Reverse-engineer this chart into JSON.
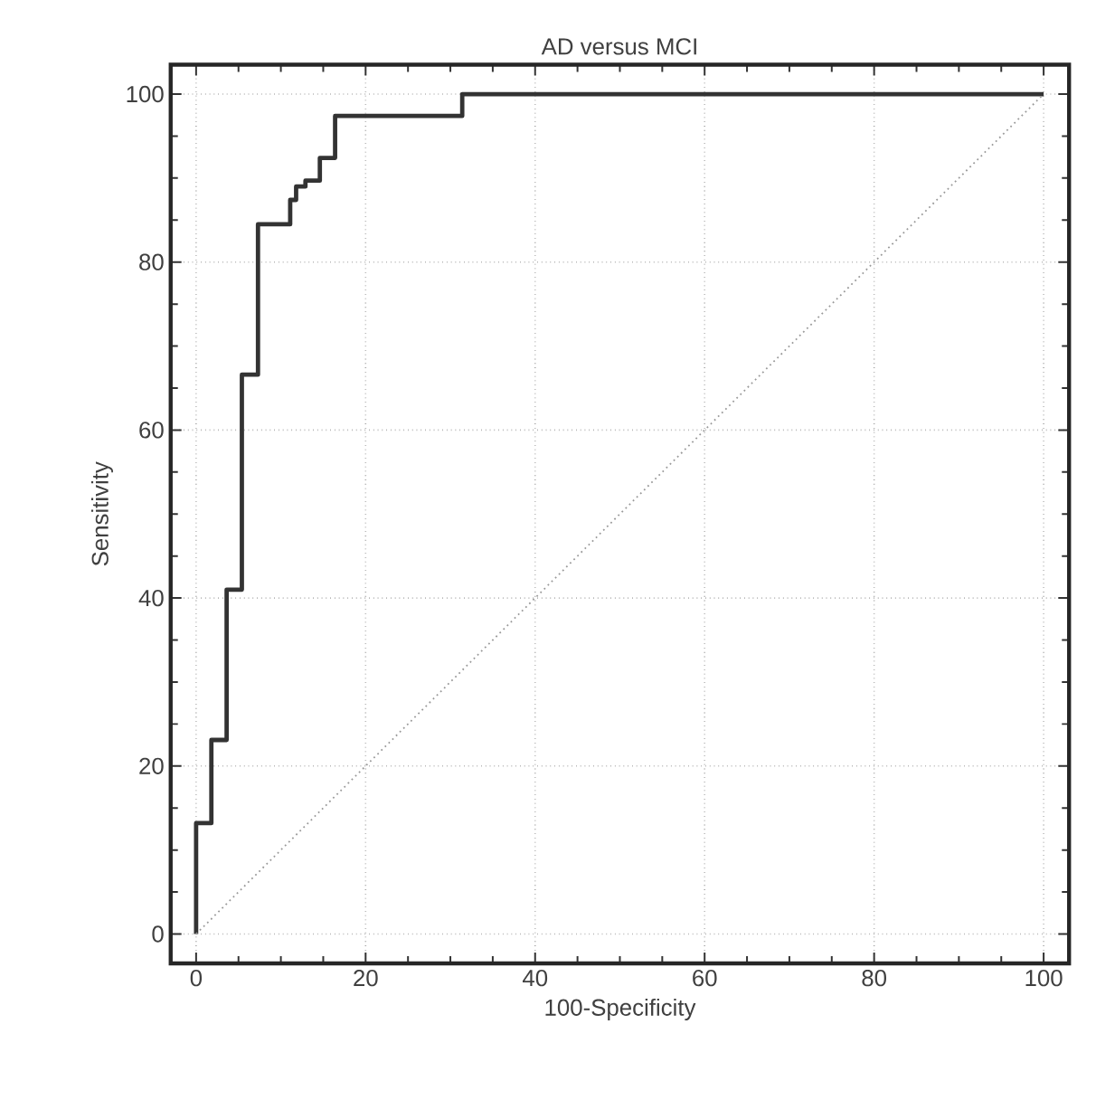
{
  "chart_data": {
    "type": "step",
    "title": "AD versus MCI",
    "xlabel": "100-Specificity",
    "ylabel": "Sensitivity",
    "xlim": [
      -3,
      103
    ],
    "ylim": [
      -3.5,
      103.5
    ],
    "xticks": [
      0,
      20,
      40,
      60,
      80,
      100
    ],
    "yticks": [
      0,
      20,
      40,
      60,
      80,
      100
    ],
    "grid": true,
    "series": [
      {
        "color": "#333333",
        "x": [
          0,
          0,
          1.8,
          3.6,
          5.4,
          7.3,
          11.1,
          11.8,
          12.9,
          14.6,
          16.4,
          31.4,
          100
        ],
        "values": [
          0,
          13.2,
          23.1,
          41,
          66.6,
          84.5,
          87.4,
          89,
          89.7,
          92.4,
          97.4,
          100,
          100
        ]
      },
      {
        "type": "line",
        "color": "#999999",
        "line_style": "dotted",
        "x": [
          0,
          100
        ],
        "values": [
          0,
          100
        ]
      }
    ]
  }
}
